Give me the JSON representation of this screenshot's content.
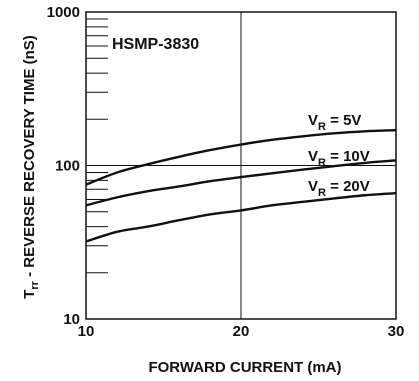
{
  "chart_data": {
    "type": "line",
    "title": "HSMP-3830",
    "xlabel": "FORWARD CURRENT (mA)",
    "ylabel_main": "T",
    "ylabel_sub": "rr",
    "ylabel_rest": " - REVERSE RECOVERY TIME (nS)",
    "xscale": "linear",
    "yscale": "log",
    "xlim": [
      10,
      30
    ],
    "ylim": [
      10,
      1000
    ],
    "x_ticks": [
      10,
      20,
      30
    ],
    "x_tick_labels": [
      "10",
      "20",
      "30"
    ],
    "y_tick_labels": [
      {
        "value": 10,
        "label": "10"
      },
      {
        "value": 100,
        "label": "100"
      },
      {
        "value": 1000,
        "label": "1000"
      }
    ],
    "grid": {
      "vertical_at_x": [
        20
      ],
      "horizontal_at_y": [
        100
      ]
    },
    "series": [
      {
        "name_main": "V",
        "name_sub": "R",
        "name_rest": " = 5V",
        "x": [
          10,
          12,
          14,
          16,
          18,
          20,
          22,
          24,
          26,
          28,
          30
        ],
        "y": [
          75,
          90,
          102,
          114,
          126,
          137,
          147,
          155,
          162,
          167,
          170
        ]
      },
      {
        "name_main": "V",
        "name_sub": "R",
        "name_rest": " = 10V",
        "x": [
          10,
          12,
          14,
          16,
          18,
          20,
          22,
          24,
          26,
          28,
          30
        ],
        "y": [
          55,
          62,
          68,
          73,
          79,
          84,
          89,
          94,
          99,
          104,
          108
        ]
      },
      {
        "name_main": "V",
        "name_sub": "R",
        "name_rest": " = 20V",
        "x": [
          10,
          12,
          14,
          16,
          18,
          20,
          22,
          24,
          26,
          28,
          30
        ],
        "y": [
          32,
          37,
          40,
          44,
          48,
          51,
          55,
          58,
          61,
          64,
          66
        ]
      }
    ]
  }
}
